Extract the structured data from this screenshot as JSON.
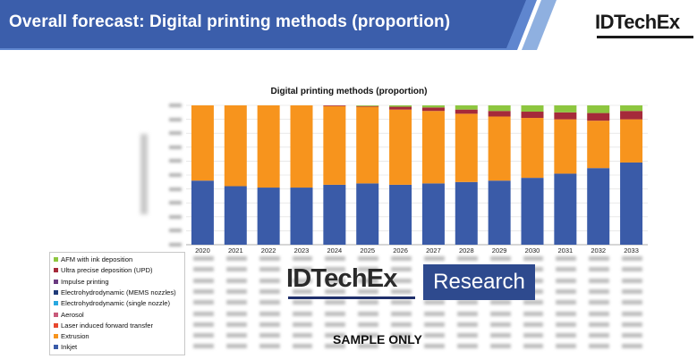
{
  "slide": {
    "title": "Overall forecast: Digital printing methods (proportion)",
    "logo": "IDTechEx",
    "watermark_logo": "IDTechEx",
    "watermark_research": "Research",
    "sample_text": "SAMPLE ONLY",
    "colors": {
      "banner": "#3b5eab",
      "banner_accent": "#5f86cf"
    }
  },
  "chart_data": {
    "type": "bar",
    "stacked": true,
    "title": "Digital printing methods (proportion)",
    "xlabel": "",
    "ylabel": "",
    "ylim": [
      0,
      1
    ],
    "grid": true,
    "legend_position": "bottom-left",
    "categories": [
      "2020",
      "2021",
      "2022",
      "2023",
      "2024",
      "2025",
      "2026",
      "2027",
      "2028",
      "2029",
      "2030",
      "2031",
      "2032",
      "2033"
    ],
    "series": [
      {
        "name": "Inkjet",
        "color": "#3a5ba8",
        "values": [
          0.46,
          0.42,
          0.41,
          0.41,
          0.43,
          0.44,
          0.43,
          0.44,
          0.45,
          0.46,
          0.48,
          0.51,
          0.55,
          0.59
        ]
      },
      {
        "name": "Extrusion",
        "color": "#f7941d",
        "values": [
          0.54,
          0.58,
          0.59,
          0.59,
          0.565,
          0.55,
          0.54,
          0.52,
          0.49,
          0.46,
          0.43,
          0.39,
          0.34,
          0.31
        ]
      },
      {
        "name": "Laser induced forward transfer",
        "color": "#e8472e",
        "values": [
          0,
          0,
          0,
          0,
          0,
          0,
          0,
          0,
          0,
          0,
          0,
          0,
          0,
          0
        ]
      },
      {
        "name": "Aerosol",
        "color": "#c85a7a",
        "values": [
          0,
          0,
          0,
          0,
          0,
          0,
          0,
          0,
          0,
          0,
          0,
          0,
          0,
          0
        ]
      },
      {
        "name": "Electrohydrodynamic (single nozzle)",
        "color": "#28a8e0",
        "values": [
          0,
          0,
          0,
          0,
          0,
          0,
          0,
          0,
          0,
          0,
          0,
          0,
          0,
          0
        ]
      },
      {
        "name": "Electrohydrodynamic (MEMS nozzles)",
        "color": "#1f3a78",
        "values": [
          0,
          0,
          0,
          0,
          0,
          0,
          0,
          0,
          0,
          0,
          0,
          0,
          0,
          0
        ]
      },
      {
        "name": "Impulse printing",
        "color": "#6a3a80",
        "values": [
          0,
          0,
          0,
          0,
          0,
          0,
          0,
          0,
          0,
          0,
          0,
          0,
          0,
          0
        ]
      },
      {
        "name": "Ultra precise deposition (UPD)",
        "color": "#a52a3a",
        "values": [
          0,
          0,
          0,
          0,
          0.005,
          0.005,
          0.02,
          0.025,
          0.03,
          0.04,
          0.045,
          0.05,
          0.055,
          0.06
        ]
      },
      {
        "name": "AFM with ink deposition",
        "color": "#8dc63f",
        "values": [
          0,
          0,
          0,
          0,
          0,
          0.005,
          0.01,
          0.015,
          0.03,
          0.04,
          0.045,
          0.05,
          0.055,
          0.04
        ]
      }
    ],
    "legend_order": [
      "AFM with ink deposition",
      "Ultra precise deposition (UPD)",
      "Impulse printing",
      "Electrohydrodynamic (MEMS nozzles)",
      "Electrohydrodynamic (single nozzle)",
      "Aerosol",
      "Laser induced forward transfer",
      "Extrusion",
      "Inkjet"
    ]
  }
}
